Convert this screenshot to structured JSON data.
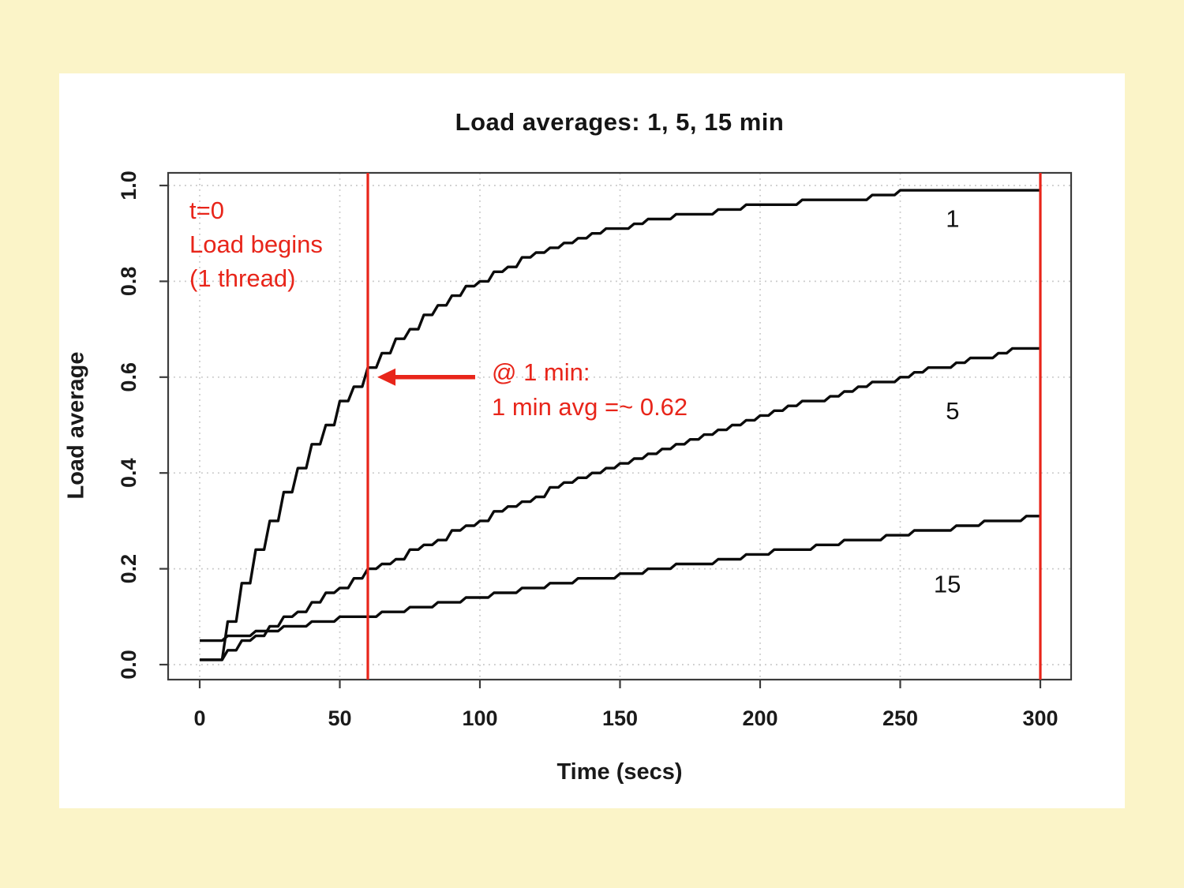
{
  "colors": {
    "background": "#FBF4C8",
    "panel": "#FFFFFF",
    "red": "#E8251A",
    "curve": "#0B0B0B",
    "grid": "#C7C7C7",
    "frame": "#3C3C3C",
    "text": "#1A1A1A"
  },
  "chart_data": {
    "type": "line",
    "title": "Load averages: 1, 5, 15 min",
    "xlabel": "Time (secs)",
    "ylabel": "Load average",
    "x_ticks": [
      0,
      50,
      100,
      150,
      200,
      250,
      300
    ],
    "y_ticks": [
      0.0,
      0.2,
      0.4,
      0.6,
      0.8,
      1.0
    ],
    "y_tick_labels": [
      "0.0",
      "0.2",
      "0.4",
      "0.6",
      "0.8",
      "1.0"
    ],
    "xlim": [
      -12.5,
      312.5
    ],
    "ylim": [
      -0.04,
      1.04
    ],
    "grid": "dotted gridlines at every x and y tick",
    "x_start": 0,
    "x_step": 5,
    "series": [
      {
        "name": "1 min load average",
        "label": "1",
        "values": [
          0.01,
          0.01,
          0.09,
          0.17,
          0.24,
          0.3,
          0.36,
          0.41,
          0.46,
          0.5,
          0.55,
          0.58,
          0.62,
          0.65,
          0.68,
          0.7,
          0.73,
          0.75,
          0.77,
          0.79,
          0.8,
          0.82,
          0.83,
          0.85,
          0.86,
          0.87,
          0.88,
          0.89,
          0.9,
          0.91,
          0.91,
          0.92,
          0.93,
          0.93,
          0.94,
          0.94,
          0.94,
          0.95,
          0.95,
          0.96,
          0.96,
          0.96,
          0.96,
          0.97,
          0.97,
          0.97,
          0.97,
          0.97,
          0.98,
          0.98,
          0.99,
          0.99,
          0.99,
          0.99,
          0.99,
          0.99,
          0.99,
          0.99,
          0.99,
          0.99,
          0.99
        ]
      },
      {
        "name": "5 min load average",
        "label": "5",
        "values": [
          0.01,
          0.01,
          0.03,
          0.05,
          0.06,
          0.08,
          0.1,
          0.11,
          0.13,
          0.15,
          0.16,
          0.18,
          0.2,
          0.21,
          0.22,
          0.24,
          0.25,
          0.26,
          0.28,
          0.29,
          0.3,
          0.32,
          0.33,
          0.34,
          0.35,
          0.37,
          0.38,
          0.39,
          0.4,
          0.41,
          0.42,
          0.43,
          0.44,
          0.45,
          0.46,
          0.47,
          0.48,
          0.49,
          0.5,
          0.51,
          0.52,
          0.53,
          0.54,
          0.55,
          0.55,
          0.56,
          0.57,
          0.58,
          0.59,
          0.59,
          0.6,
          0.61,
          0.62,
          0.62,
          0.63,
          0.64,
          0.64,
          0.65,
          0.66,
          0.66,
          0.66
        ]
      },
      {
        "name": "15 min load average",
        "label": "15",
        "values": [
          0.05,
          0.05,
          0.06,
          0.06,
          0.07,
          0.07,
          0.08,
          0.08,
          0.09,
          0.09,
          0.1,
          0.1,
          0.1,
          0.11,
          0.11,
          0.12,
          0.12,
          0.13,
          0.13,
          0.14,
          0.14,
          0.15,
          0.15,
          0.16,
          0.16,
          0.17,
          0.17,
          0.18,
          0.18,
          0.18,
          0.19,
          0.19,
          0.2,
          0.2,
          0.21,
          0.21,
          0.21,
          0.22,
          0.22,
          0.23,
          0.23,
          0.24,
          0.24,
          0.24,
          0.25,
          0.25,
          0.26,
          0.26,
          0.26,
          0.27,
          0.27,
          0.28,
          0.28,
          0.28,
          0.29,
          0.29,
          0.3,
          0.3,
          0.3,
          0.31,
          0.31
        ]
      }
    ],
    "curve_labels": [
      {
        "text": "1",
        "t": 268.7,
        "v": 0.931
      },
      {
        "text": "5",
        "t": 268.7,
        "v": 0.53
      },
      {
        "text": "15",
        "t": 266.8,
        "v": 0.168
      }
    ],
    "vlines": [
      {
        "t": 60,
        "meaning": "1 minute mark"
      },
      {
        "t": 300,
        "meaning": "5 minute mark"
      }
    ],
    "arrow": {
      "tail_t": 98.3,
      "tip_t": 63.4,
      "v": 0.6
    }
  },
  "annotations": {
    "start": {
      "line1": "t=0",
      "line2": "Load begins",
      "line3": "(1 thread)"
    },
    "one_min": {
      "line1": "@ 1 min:",
      "line2": "1 min avg =~ 0.62"
    }
  }
}
